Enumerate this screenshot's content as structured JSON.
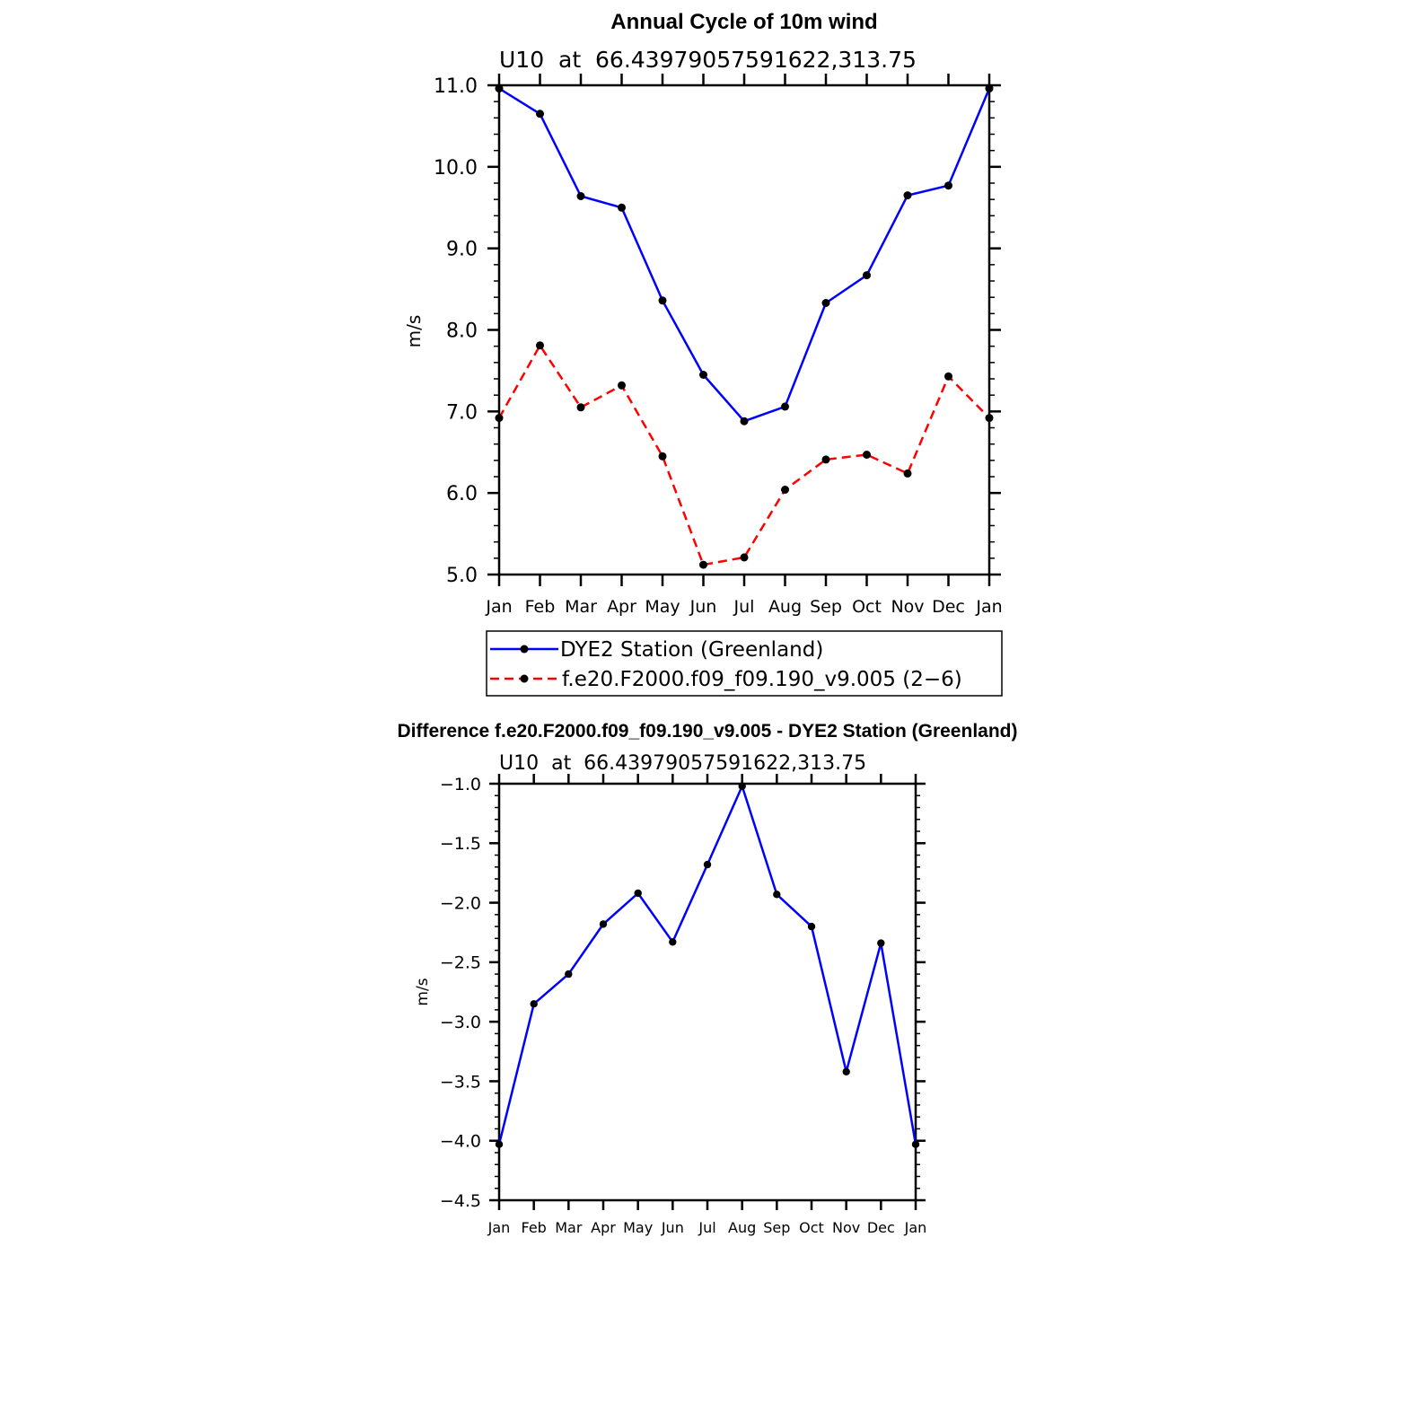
{
  "chart_data": [
    {
      "type": "line",
      "title": "Annual Cycle of 10m wind",
      "subtitle": "U10  at  66.43979057591622,313.75",
      "xlabel": "",
      "ylabel": "m/s",
      "categories": [
        "Jan",
        "Feb",
        "Mar",
        "Apr",
        "May",
        "Jun",
        "Jul",
        "Aug",
        "Sep",
        "Oct",
        "Nov",
        "Dec",
        "Jan"
      ],
      "ylim": [
        5.0,
        11.0
      ],
      "yticks": [
        "5.0",
        "6.0",
        "7.0",
        "8.0",
        "9.0",
        "10.0",
        "11.0"
      ],
      "grid": false,
      "legend_position": "below",
      "series": [
        {
          "name": "DYE2 Station (Greenland)",
          "color": "#0000ff",
          "dash": "solid",
          "values": [
            10.96,
            10.65,
            9.64,
            9.5,
            8.36,
            7.45,
            6.88,
            7.06,
            8.33,
            8.67,
            9.65,
            9.77,
            10.96
          ]
        },
        {
          "name": "f.e20.F2000.f09_f09.190_v9.005 (2−6)",
          "color": "#ff0000",
          "dash": "dashed",
          "values": [
            6.92,
            7.81,
            7.05,
            7.32,
            6.45,
            5.12,
            5.21,
            6.04,
            6.41,
            6.47,
            6.24,
            7.43,
            6.92
          ]
        }
      ]
    },
    {
      "type": "line",
      "title": "Difference f.e20.F2000.f09_f09.190_v9.005 - DYE2 Station (Greenland)",
      "subtitle": "U10  at  66.43979057591622,313.75",
      "xlabel": "",
      "ylabel": "m/s",
      "categories": [
        "Jan",
        "Feb",
        "Mar",
        "Apr",
        "May",
        "Jun",
        "Jul",
        "Aug",
        "Sep",
        "Oct",
        "Nov",
        "Dec",
        "Jan"
      ],
      "ylim": [
        -4.5,
        -1.0
      ],
      "yticks": [
        "−4.5",
        "−4.0",
        "−3.5",
        "−3.0",
        "−2.5",
        "−2.0",
        "−1.5",
        "−1.0"
      ],
      "grid": false,
      "series": [
        {
          "color": "#0000ff",
          "dash": "solid",
          "values": [
            -4.03,
            -2.85,
            -2.6,
            -2.18,
            -1.92,
            -2.33,
            -1.68,
            -1.02,
            -1.93,
            -2.2,
            -3.42,
            -2.34,
            -4.03
          ]
        }
      ]
    }
  ]
}
